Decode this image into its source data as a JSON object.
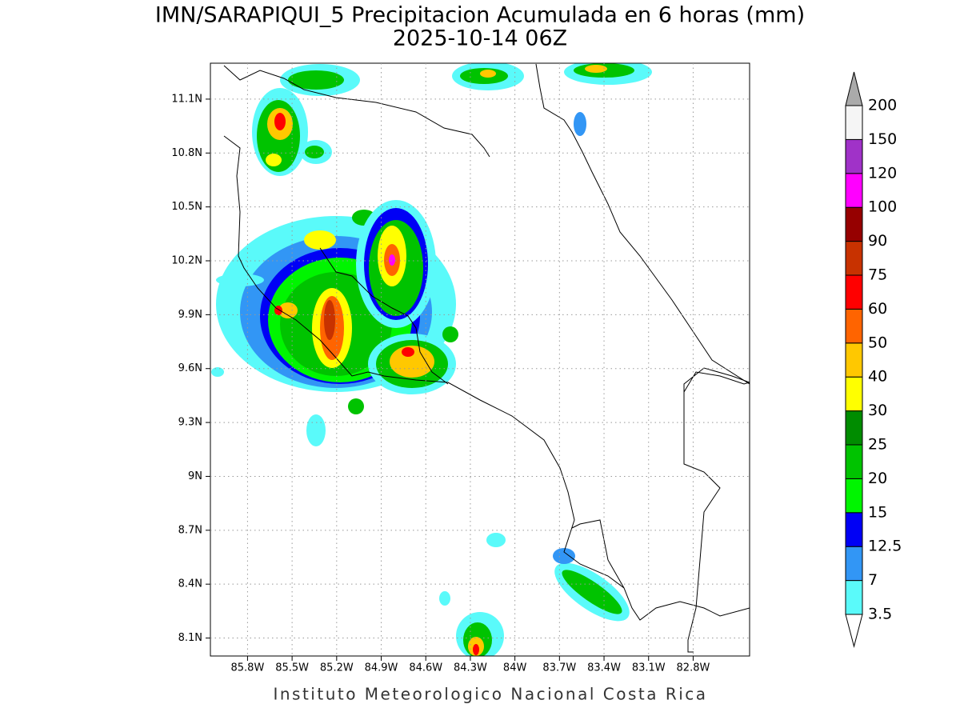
{
  "header": {
    "title": "IMN/SARAPIQUI_5 Precipitacion Acumulada en 6 horas (mm)",
    "subtitle": "2025-10-14 06Z"
  },
  "map": {
    "xlim": [
      -86.05,
      -82.42
    ],
    "ylim": [
      8.0,
      11.3
    ],
    "xticks": [
      {
        "value": -85.8,
        "label": "85.8W"
      },
      {
        "value": -85.5,
        "label": "85.5W"
      },
      {
        "value": -85.2,
        "label": "85.2W"
      },
      {
        "value": -84.9,
        "label": "84.9W"
      },
      {
        "value": -84.6,
        "label": "84.6W"
      },
      {
        "value": -84.3,
        "label": "84.3W"
      },
      {
        "value": -84.0,
        "label": "84W"
      },
      {
        "value": -83.7,
        "label": "83.7W"
      },
      {
        "value": -83.4,
        "label": "83.4W"
      },
      {
        "value": -83.1,
        "label": "83.1W"
      },
      {
        "value": -82.8,
        "label": "82.8W"
      }
    ],
    "yticks": [
      {
        "value": 8.1,
        "label": "8.1N"
      },
      {
        "value": 8.4,
        "label": "8.4N"
      },
      {
        "value": 8.7,
        "label": "8.7N"
      },
      {
        "value": 9.0,
        "label": "9N"
      },
      {
        "value": 9.3,
        "label": "9.3N"
      },
      {
        "value": 9.6,
        "label": "9.6N"
      },
      {
        "value": 9.9,
        "label": "9.9N"
      },
      {
        "value": 10.2,
        "label": "10.2N"
      },
      {
        "value": 10.5,
        "label": "10.5N"
      },
      {
        "value": 10.8,
        "label": "10.8N"
      },
      {
        "value": 11.1,
        "label": "11.1N"
      }
    ],
    "grid": true
  },
  "colorbar": {
    "levels": [
      3.5,
      7,
      12.5,
      15,
      20,
      25,
      30,
      40,
      50,
      60,
      75,
      90,
      100,
      120,
      150,
      200
    ],
    "colors": [
      "#ffffff",
      "#5afafa",
      "#3296f5",
      "#0000f5",
      "#00f500",
      "#00c300",
      "#008c00",
      "#ffff00",
      "#ffc800",
      "#ff6400",
      "#ff0000",
      "#c83200",
      "#960000",
      "#ff00ff",
      "#a032c8",
      "#f5f5f5",
      "#aaaaaa"
    ]
  },
  "footer": "Instituto Meteorologico Nacional Costa Rica"
}
